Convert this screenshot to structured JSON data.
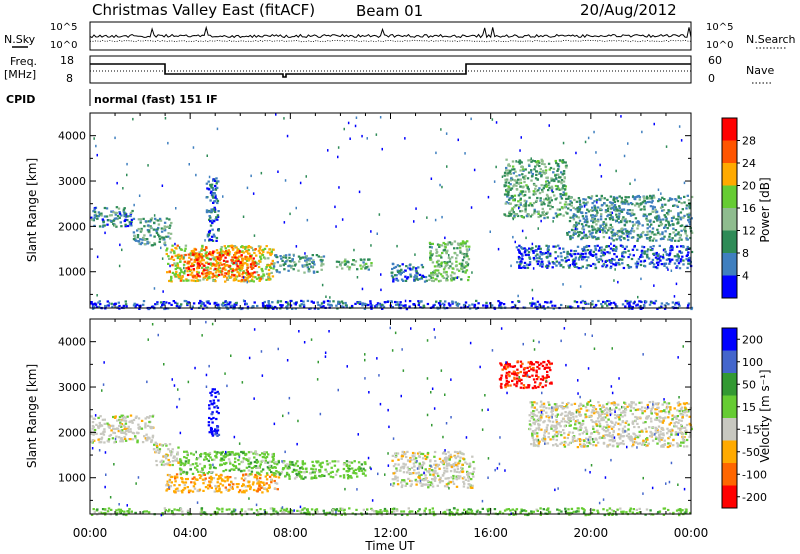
{
  "header": {
    "station_title": "Christmas Valley East (fitACF)",
    "beam": "Beam 01",
    "date": "20/Aug/2012"
  },
  "noise_panel": {
    "left_label": "N.Sky",
    "right_label": "N.Search",
    "left_ticks": [
      "10^5",
      "10^0"
    ],
    "right_ticks": [
      "10^5",
      "10^0"
    ]
  },
  "freq_panel": {
    "left_label_1": "Freq.",
    "left_label_2": "[MHz]",
    "right_label": "Nave",
    "left_ticks": [
      "18",
      "8"
    ],
    "right_ticks": [
      "60",
      "0"
    ]
  },
  "cpid_panel": {
    "label": "CPID",
    "text": "normal (fast) 151 IF"
  },
  "colors": {
    "power": [
      "#0000ff",
      "#3f7fbf",
      "#2e8b57",
      "#8fbc8f",
      "#66cc33",
      "#ffaa00",
      "#ff5500",
      "#ff0000"
    ],
    "velocity": [
      "#0000ff",
      "#4466cc",
      "#339933",
      "#66cc33",
      "#c8c8c0",
      "#ffaa00",
      "#ff6600",
      "#ff0000"
    ]
  },
  "chart_data": [
    {
      "type": "heatmap",
      "panel": "power",
      "ylabel": "Slant Range [km]",
      "yticks": [
        1000,
        2000,
        3000,
        4000
      ],
      "ylim": [
        200,
        4500
      ],
      "xlim": [
        0,
        24
      ],
      "colorbar_label": "Power [dB]",
      "colorbar_ticks": [
        "4",
        "8",
        "12",
        "16",
        "20",
        "24",
        "28"
      ],
      "colorbar_range": [
        0,
        32
      ],
      "regions": [
        {
          "t0": 0.0,
          "t1": 1.7,
          "r0": 2000,
          "r1": 2450,
          "level": 8
        },
        {
          "t0": 1.7,
          "t1": 3.2,
          "r0": 1600,
          "r1": 2200,
          "level": 10
        },
        {
          "t0": 3.0,
          "t1": 7.3,
          "r0": 800,
          "r1": 1600,
          "level": 20
        },
        {
          "t0": 3.8,
          "t1": 6.6,
          "r0": 900,
          "r1": 1500,
          "level": 25
        },
        {
          "t0": 4.6,
          "t1": 5.1,
          "r0": 1700,
          "r1": 3100,
          "level": 6
        },
        {
          "t0": 7.3,
          "t1": 9.3,
          "r0": 1000,
          "r1": 1400,
          "level": 10
        },
        {
          "t0": 9.8,
          "t1": 11.2,
          "r0": 1050,
          "r1": 1300,
          "level": 12
        },
        {
          "t0": 12.0,
          "t1": 13.4,
          "r0": 800,
          "r1": 1200,
          "level": 7
        },
        {
          "t0": 13.5,
          "t1": 15.1,
          "r0": 800,
          "r1": 1700,
          "level": 14
        },
        {
          "t0": 16.5,
          "t1": 19.0,
          "r0": 2200,
          "r1": 3500,
          "level": 12
        },
        {
          "t0": 19.0,
          "t1": 24.0,
          "r0": 1700,
          "r1": 2700,
          "level": 9
        },
        {
          "t0": 17.0,
          "t1": 24.0,
          "r0": 1100,
          "r1": 1600,
          "level": 5
        },
        {
          "t0": 0.0,
          "t1": 24.0,
          "r0": 200,
          "r1": 380,
          "level": 4
        }
      ]
    },
    {
      "type": "heatmap",
      "panel": "velocity",
      "ylabel": "Slant Range [km]",
      "yticks": [
        1000,
        2000,
        3000,
        4000
      ],
      "ylim": [
        200,
        4500
      ],
      "xlim": [
        0,
        24
      ],
      "xlabel": "Time UT",
      "xticks": [
        "00:00",
        "04:00",
        "08:00",
        "12:00",
        "16:00",
        "20:00",
        "00:00"
      ],
      "colorbar_label": "Velocity [m s⁻¹]",
      "colorbar_ticks": [
        "200",
        "100",
        "50",
        "15",
        "-15",
        "-50",
        "-100",
        "-200"
      ],
      "regions": [
        {
          "t0": 0.0,
          "t1": 2.5,
          "r0": 1800,
          "r1": 2400,
          "level": 4
        },
        {
          "t0": 2.5,
          "t1": 3.5,
          "r0": 1300,
          "r1": 1800,
          "level": 4
        },
        {
          "t0": 3.0,
          "t1": 7.5,
          "r0": 700,
          "r1": 1100,
          "level": 5
        },
        {
          "t0": 3.5,
          "t1": 7.3,
          "r0": 1100,
          "r1": 1600,
          "level": 3
        },
        {
          "t0": 4.7,
          "t1": 5.1,
          "r0": 1900,
          "r1": 3000,
          "level": 0
        },
        {
          "t0": 7.3,
          "t1": 11.0,
          "r0": 1000,
          "r1": 1400,
          "level": 3
        },
        {
          "t0": 12.0,
          "t1": 15.3,
          "r0": 800,
          "r1": 1600,
          "level": 4
        },
        {
          "t0": 16.3,
          "t1": 18.4,
          "r0": 3000,
          "r1": 3600,
          "level": 7
        },
        {
          "t0": 17.5,
          "t1": 24.0,
          "r0": 1700,
          "r1": 2700,
          "level": 4
        },
        {
          "t0": 0.0,
          "t1": 24.0,
          "r0": 200,
          "r1": 350,
          "level": 3
        }
      ]
    }
  ]
}
